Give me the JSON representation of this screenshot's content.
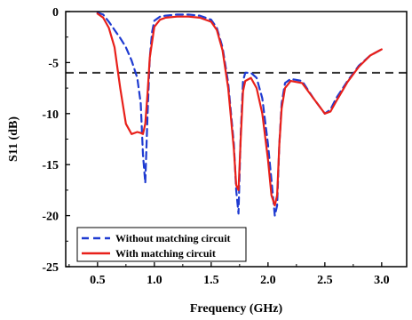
{
  "chart_data": {
    "type": "line",
    "xlabel": "Frequency (GHz)",
    "ylabel": "S11 (dB)",
    "xlim": [
      0.22,
      3.22
    ],
    "ylim": [
      -25,
      0
    ],
    "x_ticks": [
      0.5,
      1.0,
      1.5,
      2.0,
      2.5,
      3.0
    ],
    "x_tick_labels": [
      "0.5",
      "1.0",
      "1.5",
      "2.0",
      "2.5",
      "3.0"
    ],
    "y_ticks": [
      0,
      -5,
      -10,
      -15,
      -20,
      -25
    ],
    "y_tick_labels": [
      "0",
      "-5",
      "-10",
      "-15",
      "-20",
      "-25"
    ],
    "grid": false,
    "legend_position": "bottom-left",
    "reference_line": {
      "y": -6,
      "color": "#333333",
      "style": "dashed"
    },
    "series": [
      {
        "name": "Without matching circuit",
        "color": "#1f3bd1",
        "style": "dashed",
        "x": [
          0.5,
          0.55,
          0.6,
          0.65,
          0.7,
          0.75,
          0.8,
          0.85,
          0.88,
          0.9,
          0.92,
          0.94,
          0.96,
          0.98,
          1.0,
          1.05,
          1.1,
          1.2,
          1.3,
          1.4,
          1.5,
          1.55,
          1.6,
          1.65,
          1.7,
          1.72,
          1.74,
          1.76,
          1.78,
          1.8,
          1.85,
          1.9,
          1.95,
          2.0,
          2.03,
          2.06,
          2.08,
          2.1,
          2.12,
          2.15,
          2.2,
          2.3,
          2.4,
          2.5,
          2.55,
          2.6,
          2.7,
          2.8,
          2.9,
          3.0
        ],
        "y": [
          -0.1,
          -0.3,
          -1.0,
          -1.8,
          -2.6,
          -3.5,
          -4.8,
          -6.5,
          -9.0,
          -14.0,
          -16.8,
          -10.0,
          -4.5,
          -2.0,
          -0.9,
          -0.5,
          -0.4,
          -0.3,
          -0.3,
          -0.4,
          -0.8,
          -1.6,
          -3.5,
          -7.0,
          -13.0,
          -17.5,
          -19.8,
          -12.0,
          -6.8,
          -6.0,
          -6.0,
          -6.5,
          -8.5,
          -13.0,
          -16.5,
          -20.0,
          -19.0,
          -13.0,
          -9.0,
          -7.0,
          -6.6,
          -6.8,
          -8.5,
          -10.0,
          -9.6,
          -8.5,
          -6.8,
          -5.3,
          -4.3,
          -3.7
        ]
      },
      {
        "name": "With matching circuit",
        "color": "#e8201a",
        "style": "solid",
        "x": [
          0.5,
          0.55,
          0.6,
          0.65,
          0.7,
          0.75,
          0.8,
          0.85,
          0.88,
          0.9,
          0.92,
          0.94,
          0.96,
          1.0,
          1.05,
          1.1,
          1.2,
          1.3,
          1.4,
          1.5,
          1.55,
          1.6,
          1.65,
          1.7,
          1.72,
          1.74,
          1.76,
          1.78,
          1.8,
          1.85,
          1.9,
          1.95,
          2.0,
          2.03,
          2.06,
          2.08,
          2.1,
          2.12,
          2.15,
          2.2,
          2.3,
          2.4,
          2.5,
          2.55,
          2.6,
          2.7,
          2.8,
          2.9,
          3.0
        ],
        "y": [
          -0.2,
          -0.6,
          -1.6,
          -3.5,
          -7.5,
          -11.0,
          -12.0,
          -11.8,
          -11.9,
          -12.0,
          -11.0,
          -8.0,
          -4.5,
          -1.5,
          -0.8,
          -0.6,
          -0.5,
          -0.5,
          -0.6,
          -1.0,
          -1.8,
          -3.8,
          -7.5,
          -13.5,
          -17.0,
          -17.5,
          -12.5,
          -7.8,
          -6.8,
          -6.5,
          -7.5,
          -10.0,
          -14.5,
          -18.0,
          -19.0,
          -18.0,
          -13.0,
          -9.5,
          -7.5,
          -6.8,
          -7.0,
          -8.5,
          -10.0,
          -9.8,
          -8.8,
          -6.9,
          -5.4,
          -4.3,
          -3.7
        ]
      }
    ]
  }
}
